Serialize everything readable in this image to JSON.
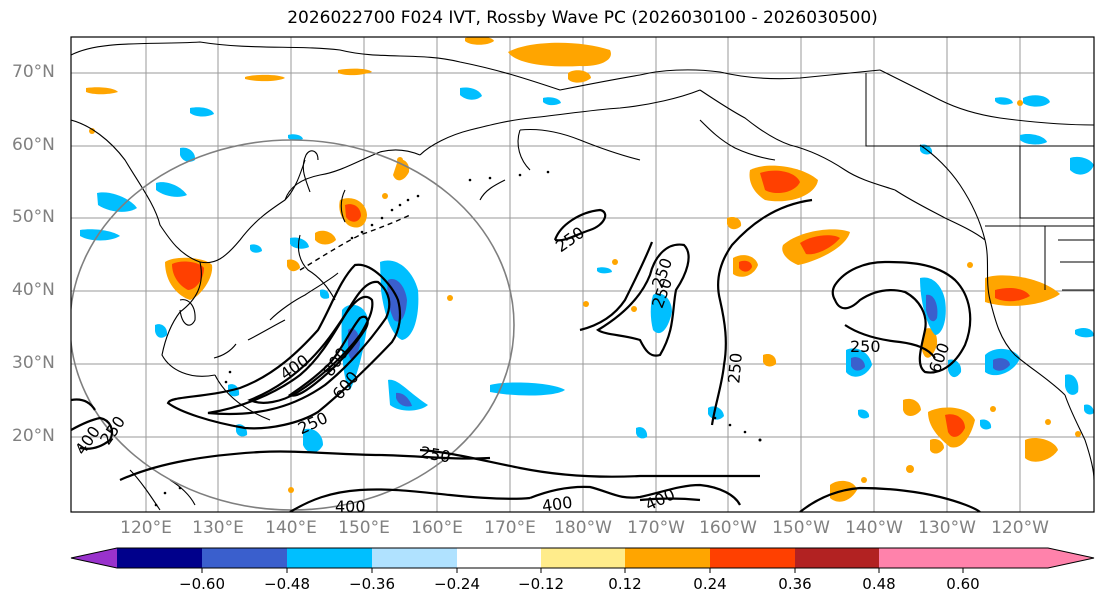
{
  "title": "2026022700 F024 IVT, Rossby Wave PC (2026030100 - 2026030500)",
  "latitude_labels": [
    "70°N",
    "60°N",
    "50°N",
    "40°N",
    "30°N",
    "20°N"
  ],
  "longitude_labels": [
    "120°E",
    "130°E",
    "140°E",
    "150°E",
    "160°E",
    "170°E",
    "180°W",
    "170°W",
    "160°W",
    "150°W",
    "140°W",
    "130°W",
    "120°W"
  ],
  "contour_labels": [
    "250",
    "400",
    "600",
    "800"
  ],
  "colorbar": {
    "ticks": [
      "−0.60",
      "−0.48",
      "−0.36",
      "−0.24",
      "−0.12",
      "0.12",
      "0.24",
      "0.36",
      "0.48",
      "0.60"
    ],
    "bins": [
      {
        "color": "#9932cc"
      },
      {
        "color": "#00008b"
      },
      {
        "color": "#3a5fcd"
      },
      {
        "color": "#00bfff"
      },
      {
        "color": "#b0e2ff"
      },
      {
        "color": "#ffffff"
      },
      {
        "color": "#ffec8b"
      },
      {
        "color": "#ffa500"
      },
      {
        "color": "#ff4000"
      },
      {
        "color": "#b22222"
      },
      {
        "color": "#ff82ab"
      }
    ]
  }
}
